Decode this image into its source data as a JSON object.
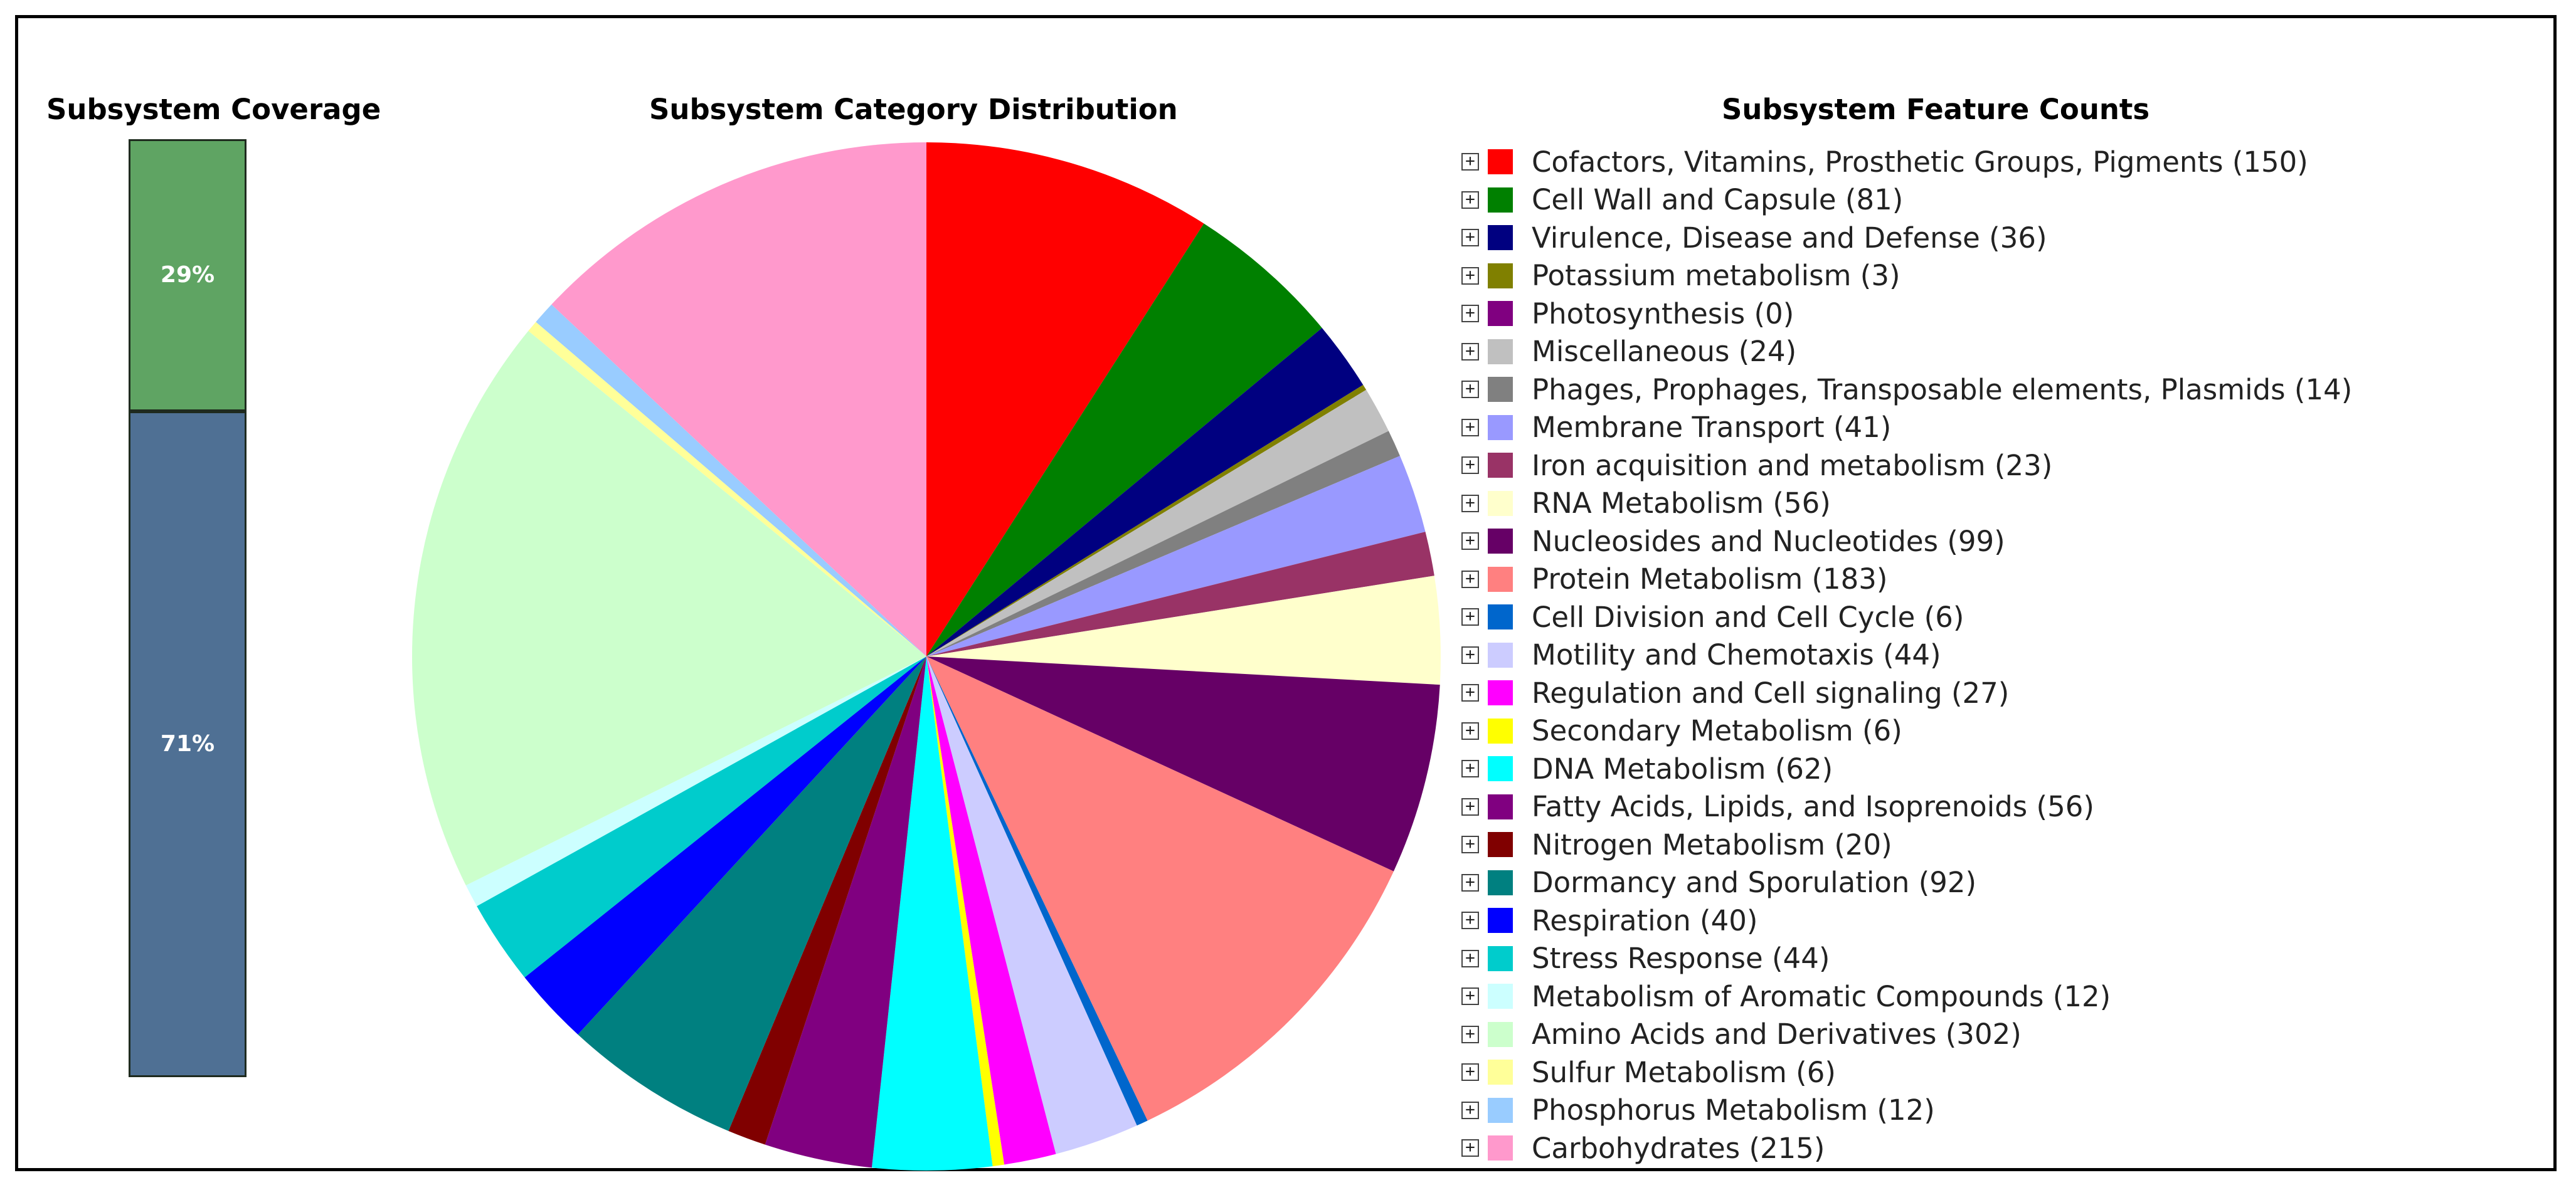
{
  "chart_data": [
    {
      "type": "bar",
      "title": "Subsystem Coverage",
      "stacked": true,
      "series": [
        {
          "label": "29%",
          "value": 29,
          "color": "#5fa463"
        },
        {
          "label": "71%",
          "value": 71,
          "color": "#4f7094"
        }
      ]
    },
    {
      "type": "pie",
      "title": "Subsystem Category Distribution",
      "slices": [
        {
          "label": "Cofactors, Vitamins, Prosthetic Groups, Pigments",
          "value": 150,
          "color": "#ff0000"
        },
        {
          "label": "Cell Wall and Capsule",
          "value": 81,
          "color": "#008000"
        },
        {
          "label": "Virulence, Disease and Defense",
          "value": 36,
          "color": "#000080"
        },
        {
          "label": "Potassium metabolism",
          "value": 3,
          "color": "#808000"
        },
        {
          "label": "Photosynthesis",
          "value": 0,
          "color": "#800080"
        },
        {
          "label": "Miscellaneous",
          "value": 24,
          "color": "#c0c0c0"
        },
        {
          "label": "Phages, Prophages, Transposable elements, Plasmids",
          "value": 14,
          "color": "#808080"
        },
        {
          "label": "Membrane Transport",
          "value": 41,
          "color": "#9999ff"
        },
        {
          "label": "Iron acquisition and metabolism",
          "value": 23,
          "color": "#993366"
        },
        {
          "label": "RNA Metabolism",
          "value": 56,
          "color": "#ffffcc"
        },
        {
          "label": "Nucleosides and Nucleotides",
          "value": 99,
          "color": "#660066"
        },
        {
          "label": "Protein Metabolism",
          "value": 183,
          "color": "#ff8080"
        },
        {
          "label": "Cell Division and Cell Cycle",
          "value": 6,
          "color": "#0066cc"
        },
        {
          "label": "Motility and Chemotaxis",
          "value": 44,
          "color": "#ccccff"
        },
        {
          "label": "Regulation and Cell signaling",
          "value": 27,
          "color": "#ff00ff"
        },
        {
          "label": "Secondary Metabolism",
          "value": 6,
          "color": "#ffff00"
        },
        {
          "label": "DNA Metabolism",
          "value": 62,
          "color": "#00ffff"
        },
        {
          "label": "Fatty Acids, Lipids, and Isoprenoids",
          "value": 56,
          "color": "#800080"
        },
        {
          "label": "Nitrogen Metabolism",
          "value": 20,
          "color": "#800000"
        },
        {
          "label": "Dormancy and Sporulation",
          "value": 92,
          "color": "#008080"
        },
        {
          "label": "Respiration",
          "value": 40,
          "color": "#0000ff"
        },
        {
          "label": "Stress Response",
          "value": 44,
          "color": "#00cccc"
        },
        {
          "label": "Metabolism of Aromatic Compounds",
          "value": 12,
          "color": "#ccffff"
        },
        {
          "label": "Amino Acids and Derivatives",
          "value": 302,
          "color": "#ccffcc"
        },
        {
          "label": "Sulfur Metabolism",
          "value": 6,
          "color": "#ffff99"
        },
        {
          "label": "Phosphorus Metabolism",
          "value": 12,
          "color": "#99ccff"
        },
        {
          "label": "Carbohydrates",
          "value": 215,
          "color": "#ff99cc"
        }
      ]
    }
  ],
  "legend_title": "Subsystem Feature Counts",
  "legend_items": [
    "Cofactors, Vitamins, Prosthetic Groups, Pigments (150)",
    "Cell Wall and Capsule (81)",
    "Virulence, Disease and Defense (36)",
    "Potassium metabolism (3)",
    "Photosynthesis (0)",
    "Miscellaneous (24)",
    "Phages, Prophages, Transposable elements, Plasmids (14)",
    "Membrane Transport (41)",
    "Iron acquisition and metabolism (23)",
    "RNA Metabolism (56)",
    "Nucleosides and Nucleotides (99)",
    "Protein Metabolism (183)",
    "Cell Division and Cell Cycle (6)",
    "Motility and Chemotaxis (44)",
    "Regulation and Cell signaling (27)",
    "Secondary Metabolism (6)",
    "DNA Metabolism (62)",
    "Fatty Acids, Lipids, and Isoprenoids (56)",
    "Nitrogen Metabolism (20)",
    "Dormancy and Sporulation (92)",
    "Respiration (40)",
    "Stress Response (44)",
    "Metabolism of Aromatic Compounds (12)",
    "Amino Acids and Derivatives (302)",
    "Sulfur Metabolism (6)",
    "Phosphorus Metabolism (12)",
    "Carbohydrates (215)"
  ],
  "expand_glyph": "⊞",
  "icons": {
    "expand": "plus-box-icon"
  }
}
